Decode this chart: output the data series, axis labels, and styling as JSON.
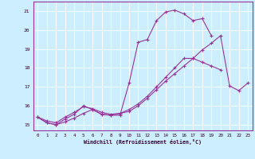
{
  "bg_color": "#cceeff",
  "line_color": "#993399",
  "grid_color": "#ffffff",
  "xlabel": "Windchill (Refroidissement éolien,°C)",
  "xlim": [
    -0.5,
    23.5
  ],
  "ylim": [
    14.7,
    21.5
  ],
  "yticks": [
    15,
    16,
    17,
    18,
    19,
    20,
    21
  ],
  "xticks": [
    0,
    1,
    2,
    3,
    4,
    5,
    6,
    7,
    8,
    9,
    10,
    11,
    12,
    13,
    14,
    15,
    16,
    17,
    18,
    19,
    20,
    21,
    22,
    23
  ],
  "lines": [
    [
      15.4,
      15.1,
      15.0,
      15.15,
      15.35,
      15.6,
      15.8,
      15.55,
      15.5,
      15.5,
      17.2,
      19.35,
      19.5,
      20.5,
      20.95,
      21.05,
      20.85,
      20.5,
      20.6,
      19.7
    ],
    [
      15.4,
      15.1,
      15.0,
      15.3,
      15.55,
      16.0,
      15.8,
      15.55,
      15.5,
      15.6,
      15.8,
      16.1,
      16.5,
      17.0,
      17.5,
      18.0,
      18.5,
      18.5,
      18.3,
      18.1,
      17.9
    ],
    [
      15.4,
      15.2,
      15.1,
      15.4,
      15.65,
      15.95,
      15.85,
      15.65,
      15.55,
      15.6,
      15.7,
      16.0,
      16.4,
      16.85,
      17.3,
      17.7,
      18.1,
      18.5,
      18.95,
      19.3,
      19.7,
      17.05,
      16.8,
      17.2
    ]
  ]
}
